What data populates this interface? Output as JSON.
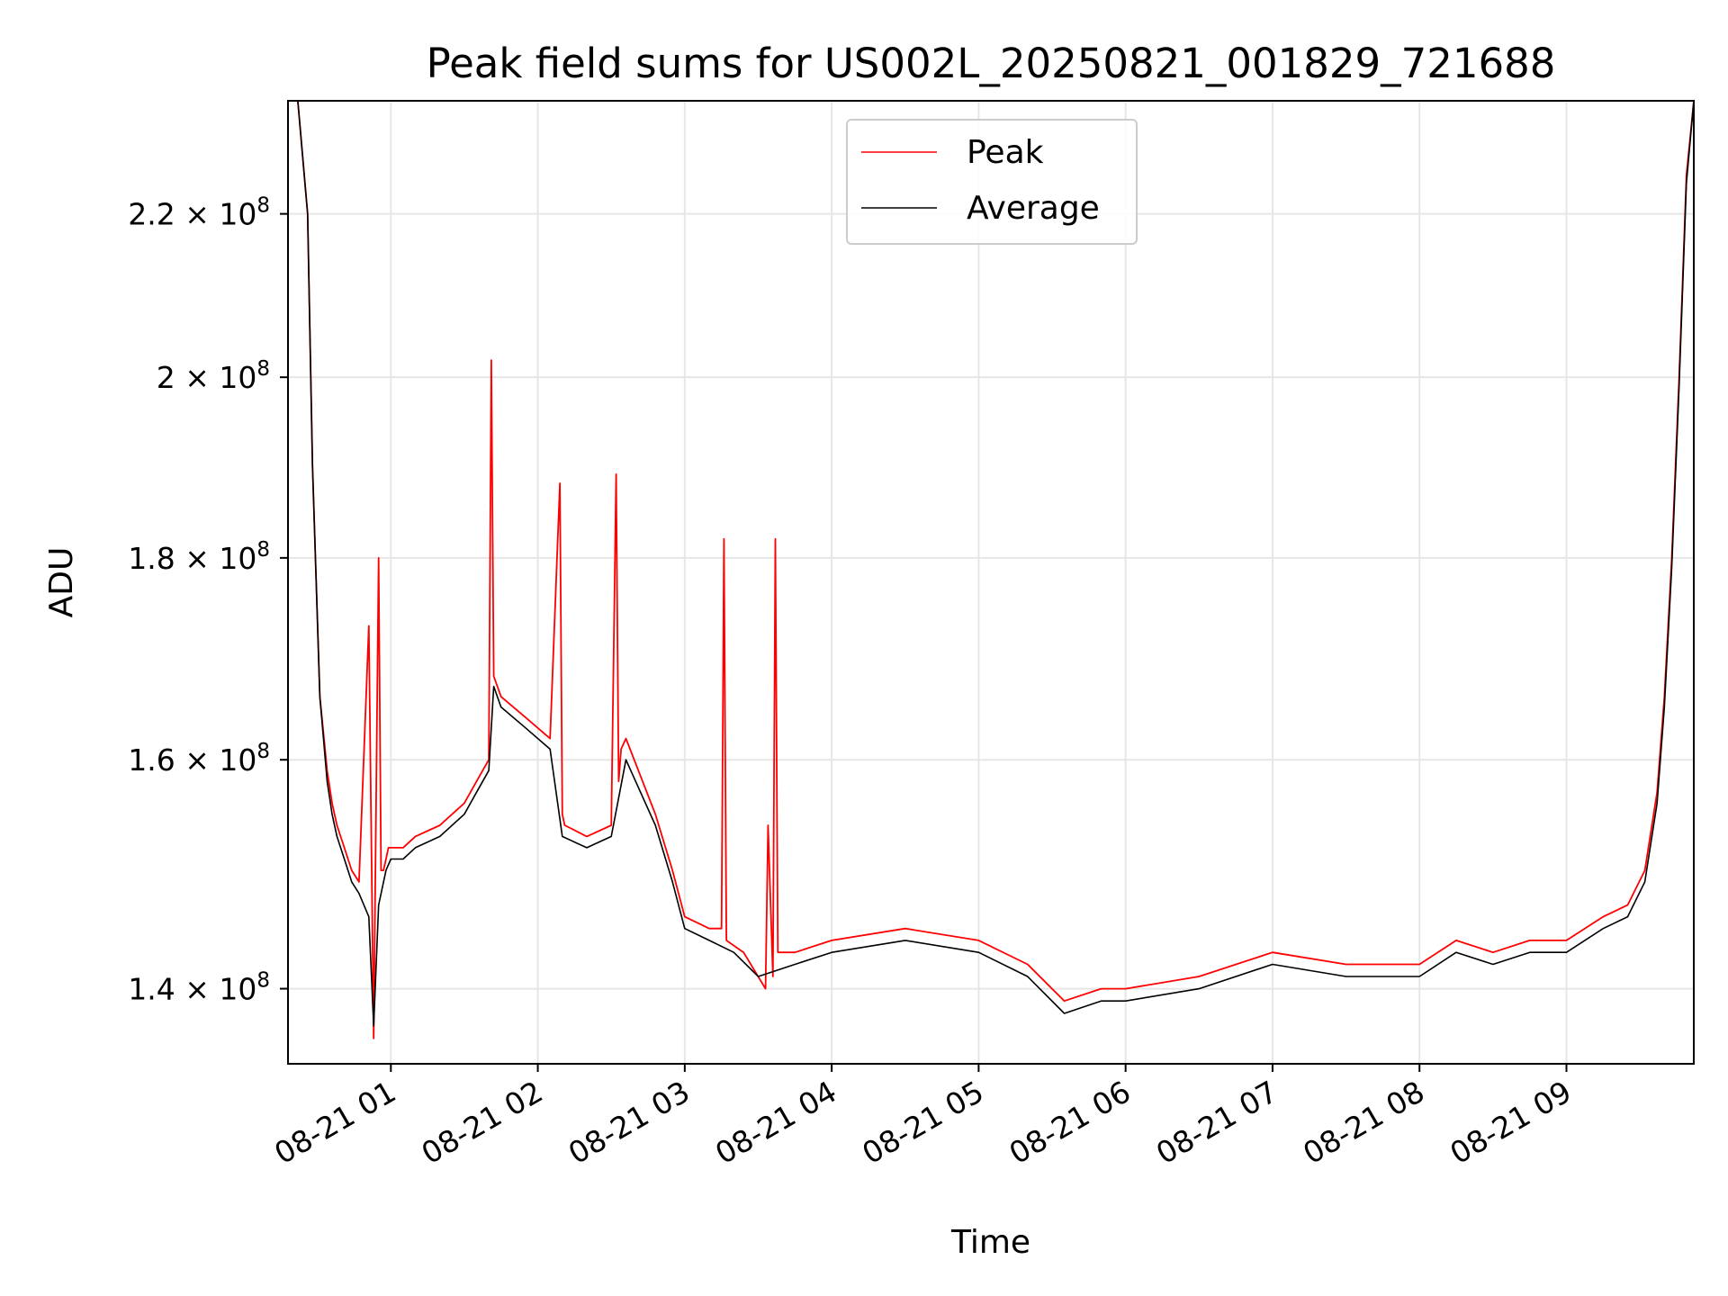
{
  "chart_data": {
    "type": "line",
    "title": "Peak field sums for US002L_20250821_001829_721688",
    "xlabel": "Time",
    "ylabel": "ADU",
    "y_scale": "log",
    "ylim": [
      134000000,
      235000000
    ],
    "xlim": [
      "2025-08-21 00:18",
      "2025-08-21 09:52"
    ],
    "grid": true,
    "legend_position": "top-center",
    "x_tick_labels": [
      "08-21 01",
      "08-21 02",
      "08-21 03",
      "08-21 04",
      "08-21 05",
      "08-21 06",
      "08-21 07",
      "08-21 08",
      "08-21 09"
    ],
    "x_ticks": [
      "2025-08-21 01:00",
      "2025-08-21 02:00",
      "2025-08-21 03:00",
      "2025-08-21 04:00",
      "2025-08-21 05:00",
      "2025-08-21 06:00",
      "2025-08-21 07:00",
      "2025-08-21 08:00",
      "2025-08-21 09:00"
    ],
    "y_ticks": [
      {
        "value": 140000000,
        "mantissa": "1.4",
        "exponent": "8"
      },
      {
        "value": 160000000,
        "mantissa": "1.6",
        "exponent": "8"
      },
      {
        "value": 180000000,
        "mantissa": "1.8",
        "exponent": "8"
      },
      {
        "value": 200000000,
        "mantissa": "2",
        "exponent": "8"
      },
      {
        "value": 220000000,
        "mantissa": "2.2",
        "exponent": "8"
      }
    ],
    "series": [
      {
        "name": "Peak",
        "color": "#ff0000",
        "x": [
          "2025-08-21 00:18",
          "2025-08-21 00:22",
          "2025-08-21 00:26",
          "2025-08-21 00:28",
          "2025-08-21 00:31",
          "2025-08-21 00:34",
          "2025-08-21 00:36",
          "2025-08-21 00:38",
          "2025-08-21 00:41",
          "2025-08-21 00:44",
          "2025-08-21 00:47",
          "2025-08-21 00:51",
          "2025-08-21 00:53",
          "2025-08-21 00:55",
          "2025-08-21 00:56",
          "2025-08-21 00:57",
          "2025-08-21 00:58",
          "2025-08-21 00:59",
          "2025-08-21 01:00",
          "2025-08-21 01:05",
          "2025-08-21 01:10",
          "2025-08-21 01:20",
          "2025-08-21 01:30",
          "2025-08-21 01:35",
          "2025-08-21 01:40",
          "2025-08-21 01:41",
          "2025-08-21 01:42",
          "2025-08-21 01:45",
          "2025-08-21 01:55",
          "2025-08-21 02:05",
          "2025-08-21 02:09",
          "2025-08-21 02:10",
          "2025-08-21 02:11",
          "2025-08-21 02:20",
          "2025-08-21 02:30",
          "2025-08-21 02:32",
          "2025-08-21 02:33",
          "2025-08-21 02:34",
          "2025-08-21 02:36",
          "2025-08-21 02:48",
          "2025-08-21 02:55",
          "2025-08-21 03:00",
          "2025-08-21 03:10",
          "2025-08-21 03:15",
          "2025-08-21 03:16",
          "2025-08-21 03:17",
          "2025-08-21 03:24",
          "2025-08-21 03:33",
          "2025-08-21 03:34",
          "2025-08-21 03:36",
          "2025-08-21 03:37",
          "2025-08-21 03:38",
          "2025-08-21 03:45",
          "2025-08-21 04:00",
          "2025-08-21 04:30",
          "2025-08-21 05:00",
          "2025-08-21 05:20",
          "2025-08-21 05:35",
          "2025-08-21 05:50",
          "2025-08-21 06:00",
          "2025-08-21 06:30",
          "2025-08-21 07:00",
          "2025-08-21 07:30",
          "2025-08-21 08:00",
          "2025-08-21 08:15",
          "2025-08-21 08:30",
          "2025-08-21 08:45",
          "2025-08-21 09:00",
          "2025-08-21 09:15",
          "2025-08-21 09:25",
          "2025-08-21 09:32",
          "2025-08-21 09:37",
          "2025-08-21 09:40",
          "2025-08-21 09:43",
          "2025-08-21 09:46",
          "2025-08-21 09:49",
          "2025-08-21 09:52"
        ],
        "values": [
          235000000,
          235000000,
          220000000,
          190000000,
          166000000,
          159000000,
          156000000,
          154000000,
          152000000,
          150000000,
          149000000,
          173000000,
          136000000,
          180000000,
          150000000,
          150000000,
          151000000,
          152000000,
          152000000,
          152000000,
          153000000,
          154000000,
          156000000,
          158000000,
          160000000,
          202000000,
          168000000,
          166000000,
          164000000,
          162000000,
          188000000,
          155000000,
          154000000,
          153000000,
          154000000,
          189000000,
          158000000,
          161000000,
          162000000,
          155000000,
          150000000,
          146000000,
          145000000,
          145000000,
          182000000,
          144000000,
          143000000,
          140000000,
          154000000,
          141000000,
          182000000,
          143000000,
          143000000,
          144000000,
          145000000,
          144000000,
          142000000,
          139000000,
          140000000,
          140000000,
          141000000,
          143000000,
          142000000,
          142000000,
          144000000,
          143000000,
          144000000,
          144000000,
          146000000,
          147000000,
          150000000,
          157000000,
          166000000,
          180000000,
          200000000,
          225000000,
          235000000
        ]
      },
      {
        "name": "Average",
        "color": "#000000",
        "x": [
          "2025-08-21 00:18",
          "2025-08-21 00:22",
          "2025-08-21 00:26",
          "2025-08-21 00:28",
          "2025-08-21 00:31",
          "2025-08-21 00:34",
          "2025-08-21 00:36",
          "2025-08-21 00:38",
          "2025-08-21 00:41",
          "2025-08-21 00:44",
          "2025-08-21 00:47",
          "2025-08-21 00:51",
          "2025-08-21 00:53",
          "2025-08-21 00:55",
          "2025-08-21 00:58",
          "2025-08-21 01:00",
          "2025-08-21 01:05",
          "2025-08-21 01:10",
          "2025-08-21 01:20",
          "2025-08-21 01:30",
          "2025-08-21 01:35",
          "2025-08-21 01:40",
          "2025-08-21 01:42",
          "2025-08-21 01:45",
          "2025-08-21 01:55",
          "2025-08-21 02:05",
          "2025-08-21 02:10",
          "2025-08-21 02:20",
          "2025-08-21 02:30",
          "2025-08-21 02:36",
          "2025-08-21 02:48",
          "2025-08-21 02:55",
          "2025-08-21 03:00",
          "2025-08-21 03:10",
          "2025-08-21 03:20",
          "2025-08-21 03:30",
          "2025-08-21 03:45",
          "2025-08-21 04:00",
          "2025-08-21 04:30",
          "2025-08-21 05:00",
          "2025-08-21 05:20",
          "2025-08-21 05:35",
          "2025-08-21 05:50",
          "2025-08-21 06:00",
          "2025-08-21 06:30",
          "2025-08-21 07:00",
          "2025-08-21 07:30",
          "2025-08-21 08:00",
          "2025-08-21 08:15",
          "2025-08-21 08:30",
          "2025-08-21 08:45",
          "2025-08-21 09:00",
          "2025-08-21 09:15",
          "2025-08-21 09:25",
          "2025-08-21 09:32",
          "2025-08-21 09:37",
          "2025-08-21 09:40",
          "2025-08-21 09:43",
          "2025-08-21 09:46",
          "2025-08-21 09:49",
          "2025-08-21 09:52"
        ],
        "values": [
          235000000,
          235000000,
          220000000,
          190000000,
          166000000,
          158000000,
          155000000,
          153000000,
          151000000,
          149000000,
          148000000,
          146000000,
          137000000,
          147000000,
          150000000,
          151000000,
          151000000,
          152000000,
          153000000,
          155000000,
          157000000,
          159000000,
          167000000,
          165000000,
          163000000,
          161000000,
          153000000,
          152000000,
          153000000,
          160000000,
          154000000,
          149000000,
          145000000,
          144000000,
          143000000,
          141000000,
          142000000,
          143000000,
          144000000,
          143000000,
          141000000,
          138000000,
          139000000,
          139000000,
          140000000,
          142000000,
          141000000,
          141000000,
          143000000,
          142000000,
          143000000,
          143000000,
          145000000,
          146000000,
          149000000,
          156000000,
          165000000,
          179000000,
          199000000,
          224000000,
          235000000
        ]
      }
    ]
  }
}
